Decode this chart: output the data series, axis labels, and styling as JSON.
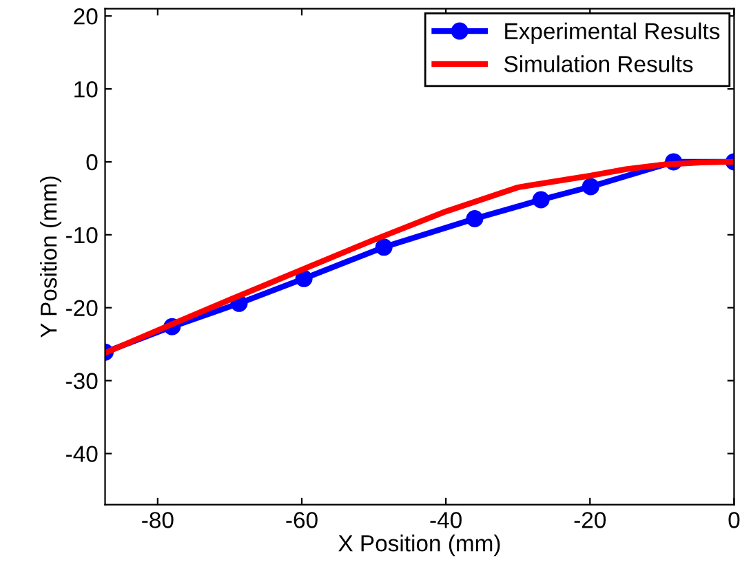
{
  "chart_data": {
    "type": "line",
    "xlabel": "X Position (mm)",
    "ylabel": "Y Position (mm)",
    "xlim": [
      -87.3,
      0
    ],
    "ylim": [
      -47,
      21
    ],
    "xticks": [
      -80,
      -60,
      -40,
      -20,
      0
    ],
    "yticks": [
      -40,
      -30,
      -20,
      -10,
      0,
      10,
      20
    ],
    "grid": false,
    "legend": "top right",
    "series": [
      {
        "name": "Experimental Results",
        "color": "#0000ff",
        "marker": "circle",
        "x": [
          -87.3,
          -78.0,
          -68.7,
          -59.7,
          -48.6,
          -36.0,
          -26.8,
          -19.9,
          -8.4,
          0
        ],
        "values": [
          -26.1,
          -22.6,
          -19.4,
          -16.0,
          -11.7,
          -7.8,
          -5.2,
          -3.4,
          0,
          0
        ]
      },
      {
        "name": "Simulation Results",
        "color": "#ff0000",
        "marker": "none",
        "x": [
          -87.3,
          -80,
          -70,
          -60,
          -50,
          -40,
          -30,
          -20,
          -15,
          -10,
          -5,
          0
        ],
        "values": [
          -26.2,
          -23.1,
          -18.9,
          -14.8,
          -10.7,
          -6.8,
          -3.5,
          -1.9,
          -1.0,
          -0.4,
          -0.1,
          0
        ]
      }
    ]
  }
}
